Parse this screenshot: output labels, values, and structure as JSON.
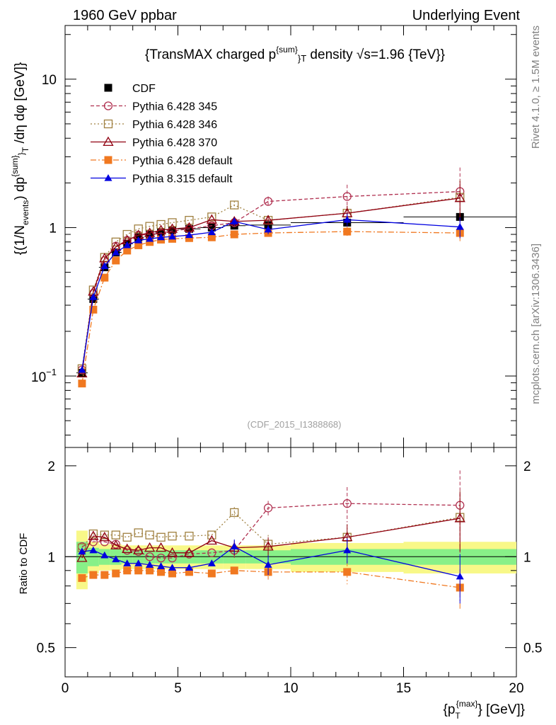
{
  "header": {
    "left": "1960 GeV ppbar",
    "right": "Underlying Event",
    "title": "{TransMAX charged p^{sum}_T density √s=1.96 {TeV}}",
    "watermark": "(CDF_2015_I1388868)",
    "side_top": "Rivet 4.1.0, ≥ 1.5M events",
    "side_bottom": "mcplots.cern.ch [arXiv:1306.3436]"
  },
  "colors": {
    "cdf": "#000000",
    "p345": "#b03050",
    "p346": "#a08040",
    "p370": "#900010",
    "p6def": "#f07820",
    "p8def": "#0000e0",
    "band_inner": "#88f088",
    "band_outer": "#f8f888"
  },
  "chart_data": {
    "type": "scatter",
    "title": "{TransMAX charged p^{sum}_T density √s=1.96 {TeV}}",
    "xlabel": "{p_T^{max}} [GeV]",
    "ylabel": "{(1/N_events) dp^{sum}_T /dη dφ [GeV]}",
    "ratio_ylabel": "Ratio to CDF",
    "xlim": [
      0,
      20
    ],
    "ylim": [
      0.033,
      23
    ],
    "yscale": "log",
    "ratio_ylim": [
      0.4,
      2.3
    ],
    "x_ticks": [
      "0",
      "5",
      "10",
      "15",
      "20"
    ],
    "y_ticks": [
      "10^{-1}",
      "1",
      "10"
    ],
    "ratio_ticks": [
      "0.5",
      "1",
      "2"
    ],
    "x": [
      0.75,
      1.25,
      1.75,
      2.25,
      2.75,
      3.25,
      3.75,
      4.25,
      4.75,
      5.5,
      6.5,
      7.5,
      9.0,
      12.5,
      17.5
    ],
    "bin_edges": [
      0.5,
      1.0,
      1.5,
      2.0,
      2.5,
      3.0,
      3.5,
      4.0,
      4.5,
      5.0,
      6.0,
      7.0,
      8.0,
      10.0,
      15.0,
      20.0
    ],
    "legend": [
      "CDF",
      "Pythia 6.428 345",
      "Pythia 6.428 346",
      "Pythia 6.428 370",
      "Pythia 6.428 default",
      "Pythia 8.315 default"
    ],
    "series": [
      {
        "name": "CDF",
        "values": [
          0.105,
          0.33,
          0.54,
          0.68,
          0.78,
          0.86,
          0.9,
          0.93,
          0.96,
          0.98,
          1.0,
          1.03,
          1.04,
          1.08,
          1.18
        ]
      },
      {
        "name": "Pythia 6.428 345",
        "values": [
          0.11,
          0.36,
          0.6,
          0.75,
          0.82,
          0.89,
          0.9,
          0.92,
          0.95,
          0.98,
          1.03,
          1.08,
          1.5,
          1.62,
          1.75
        ]
      },
      {
        "name": "Pythia 6.428 346",
        "values": [
          0.112,
          0.38,
          0.63,
          0.8,
          0.9,
          0.98,
          1.02,
          1.05,
          1.08,
          1.12,
          1.18,
          1.42,
          1.12,
          1.25,
          1.6
        ]
      },
      {
        "name": "Pythia 6.428 370",
        "values": [
          0.104,
          0.37,
          0.62,
          0.74,
          0.82,
          0.89,
          0.92,
          0.96,
          0.98,
          1.0,
          1.13,
          1.1,
          1.12,
          1.25,
          1.58
        ]
      },
      {
        "name": "Pythia 6.428 default",
        "values": [
          0.089,
          0.28,
          0.46,
          0.6,
          0.7,
          0.76,
          0.8,
          0.83,
          0.84,
          0.85,
          0.86,
          0.9,
          0.92,
          0.94,
          0.92
        ]
      },
      {
        "name": "Pythia 8.315 default",
        "values": [
          0.11,
          0.34,
          0.55,
          0.68,
          0.76,
          0.82,
          0.84,
          0.86,
          0.87,
          0.89,
          0.93,
          1.1,
          0.97,
          1.13,
          1.01
        ]
      }
    ],
    "ratio_series": [
      {
        "name": "Pythia 6.428 345",
        "values": [
          1.08,
          1.12,
          1.12,
          1.1,
          1.05,
          1.04,
          1.0,
          0.99,
          0.99,
          1.02,
          1.03,
          1.05,
          1.45,
          1.5,
          1.48
        ]
      },
      {
        "name": "Pythia 6.428 346",
        "values": [
          1.07,
          1.19,
          1.18,
          1.18,
          1.16,
          1.2,
          1.18,
          1.16,
          1.17,
          1.17,
          1.18,
          1.4,
          1.1,
          1.16,
          1.35
        ]
      },
      {
        "name": "Pythia 6.428 370",
        "values": [
          0.99,
          1.17,
          1.16,
          1.09,
          1.06,
          1.05,
          1.07,
          1.07,
          1.03,
          1.03,
          1.13,
          1.07,
          1.08,
          1.16,
          1.34
        ]
      },
      {
        "name": "Pythia 6.428 default",
        "values": [
          0.85,
          0.87,
          0.87,
          0.88,
          0.9,
          0.9,
          0.9,
          0.89,
          0.88,
          0.89,
          0.88,
          0.9,
          0.89,
          0.89,
          0.79
        ]
      },
      {
        "name": "Pythia 8.315 default",
        "values": [
          1.04,
          1.05,
          1.01,
          0.98,
          0.95,
          0.95,
          0.94,
          0.93,
          0.92,
          0.92,
          0.95,
          1.08,
          0.94,
          1.05,
          0.86
        ]
      }
    ],
    "ratio_band_inner": [
      0.12,
      0.07,
      0.06,
      0.06,
      0.05,
      0.05,
      0.05,
      0.05,
      0.05,
      0.05,
      0.05,
      0.05,
      0.05,
      0.06,
      0.06
    ],
    "ratio_band_outer": [
      0.22,
      0.12,
      0.1,
      0.1,
      0.09,
      0.09,
      0.09,
      0.09,
      0.09,
      0.09,
      0.09,
      0.09,
      0.09,
      0.11,
      0.12
    ],
    "ratio_errors": {
      "Pythia 6.428 345": [
        0.02,
        0.02,
        0.02,
        0.02,
        0.02,
        0.02,
        0.02,
        0.02,
        0.02,
        0.02,
        0.04,
        0.06,
        0.08,
        0.2,
        0.45
      ],
      "Pythia 6.428 346": [
        0.02,
        0.02,
        0.02,
        0.02,
        0.02,
        0.02,
        0.02,
        0.02,
        0.02,
        0.02,
        0.04,
        0.06,
        0.08,
        0.12,
        0.3
      ],
      "Pythia 6.428 370": [
        0.02,
        0.02,
        0.02,
        0.02,
        0.02,
        0.02,
        0.02,
        0.02,
        0.02,
        0.02,
        0.04,
        0.06,
        0.08,
        0.12,
        0.3
      ],
      "Pythia 6.428 default": [
        0.02,
        0.02,
        0.02,
        0.02,
        0.02,
        0.02,
        0.02,
        0.02,
        0.02,
        0.02,
        0.03,
        0.04,
        0.05,
        0.08,
        0.12
      ],
      "Pythia 8.315 default": [
        0.02,
        0.02,
        0.02,
        0.02,
        0.02,
        0.02,
        0.02,
        0.02,
        0.02,
        0.02,
        0.04,
        0.06,
        0.07,
        0.1,
        0.16
      ]
    }
  }
}
